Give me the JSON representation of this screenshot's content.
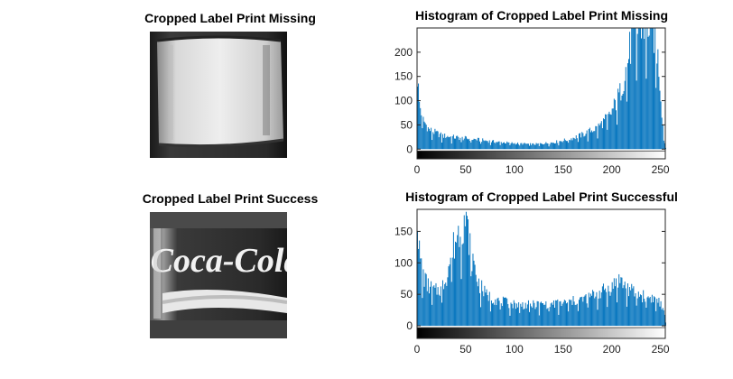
{
  "images": [
    {
      "title": "Cropped Label Print Missing"
    },
    {
      "title": "Cropped Label Print Success",
      "label_text": "Coca-Cola"
    }
  ],
  "chart_data": [
    {
      "type": "bar",
      "title": "Histogram of Cropped Label Print Missing",
      "xlabel": "",
      "ylabel": "",
      "xlim": [
        0,
        255
      ],
      "ylim": [
        -20,
        250
      ],
      "xticks": [
        0,
        50,
        100,
        150,
        200,
        250
      ],
      "yticks": [
        0,
        50,
        100,
        150,
        200
      ],
      "color": "#0072BD",
      "grayscale_colorbar": true,
      "profile": [
        [
          0,
          150
        ],
        [
          2,
          95
        ],
        [
          6,
          60
        ],
        [
          12,
          40
        ],
        [
          25,
          28
        ],
        [
          40,
          24
        ],
        [
          60,
          20
        ],
        [
          80,
          15
        ],
        [
          100,
          12
        ],
        [
          120,
          10
        ],
        [
          140,
          14
        ],
        [
          155,
          20
        ],
        [
          170,
          30
        ],
        [
          185,
          45
        ],
        [
          198,
          70
        ],
        [
          208,
          115
        ],
        [
          215,
          175
        ],
        [
          222,
          240
        ],
        [
          230,
          260
        ],
        [
          238,
          260
        ],
        [
          244,
          240
        ],
        [
          248,
          170
        ],
        [
          251,
          80
        ],
        [
          253,
          20
        ],
        [
          255,
          5
        ]
      ]
    },
    {
      "type": "bar",
      "title": "Histogram of Cropped Label Print Successful",
      "xlabel": "",
      "ylabel": "",
      "xlim": [
        0,
        255
      ],
      "ylim": [
        -20,
        185
      ],
      "xticks": [
        0,
        50,
        100,
        150,
        200,
        250
      ],
      "yticks": [
        0,
        50,
        100,
        150
      ],
      "color": "#0072BD",
      "grayscale_colorbar": true,
      "profile": [
        [
          0,
          180
        ],
        [
          2,
          115
        ],
        [
          5,
          85
        ],
        [
          10,
          65
        ],
        [
          18,
          55
        ],
        [
          25,
          60
        ],
        [
          30,
          80
        ],
        [
          35,
          115
        ],
        [
          40,
          140
        ],
        [
          45,
          160
        ],
        [
          48,
          170
        ],
        [
          52,
          150
        ],
        [
          56,
          110
        ],
        [
          62,
          70
        ],
        [
          70,
          50
        ],
        [
          80,
          42
        ],
        [
          95,
          35
        ],
        [
          110,
          33
        ],
        [
          130,
          34
        ],
        [
          150,
          36
        ],
        [
          170,
          42
        ],
        [
          190,
          55
        ],
        [
          200,
          62
        ],
        [
          207,
          75
        ],
        [
          212,
          65
        ],
        [
          220,
          55
        ],
        [
          230,
          48
        ],
        [
          240,
          45
        ],
        [
          248,
          40
        ],
        [
          252,
          25
        ],
        [
          255,
          12
        ]
      ]
    }
  ]
}
